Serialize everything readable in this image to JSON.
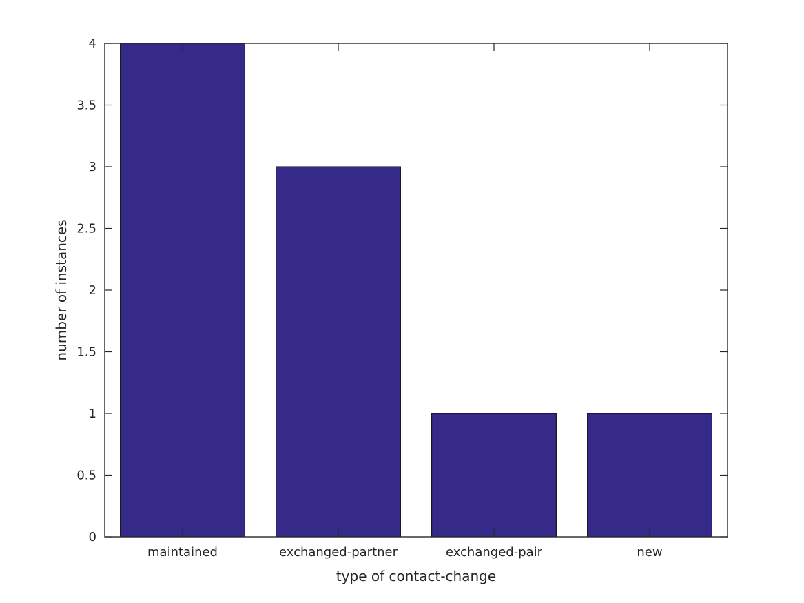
{
  "chart_data": {
    "type": "bar",
    "title": "",
    "categories": [
      "maintained",
      "exchanged-partner",
      "exchanged-pair",
      "new"
    ],
    "values": [
      4,
      3,
      1,
      1
    ],
    "xlabel": "type of contact-change",
    "ylabel": "number of instances",
    "ylim": [
      0,
      4
    ],
    "yticks": [
      0,
      0.5,
      1,
      1.5,
      2,
      2.5,
      3,
      3.5,
      4
    ],
    "ytick_labels": [
      "0",
      "0.5",
      "1",
      "1.5",
      "2",
      "2.5",
      "3",
      "3.5",
      "4"
    ],
    "bar_width_fraction": 0.8,
    "grid": false,
    "legend": null,
    "box": true,
    "tick_direction": "in",
    "colors": {
      "bar_fill": "#352a87",
      "bar_edge": "#000000",
      "axis": "#262626",
      "text": "#262626",
      "background": "#ffffff"
    }
  }
}
